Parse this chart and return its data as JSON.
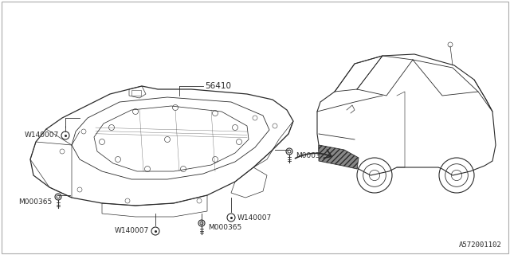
{
  "bg_color": "#ffffff",
  "line_color": "#2a2a2a",
  "diagram_id": "A572001102",
  "font_size": 6.5,
  "labels": {
    "part_56410": "56410",
    "w140007_tl": "W140007",
    "m000365_bl": "M000365",
    "m000365_mr": "M000365",
    "w140007_bm": "W140007",
    "w140007_br": "W140007",
    "m000365_br": "M000365",
    "diagram_ref": "A572001102"
  }
}
